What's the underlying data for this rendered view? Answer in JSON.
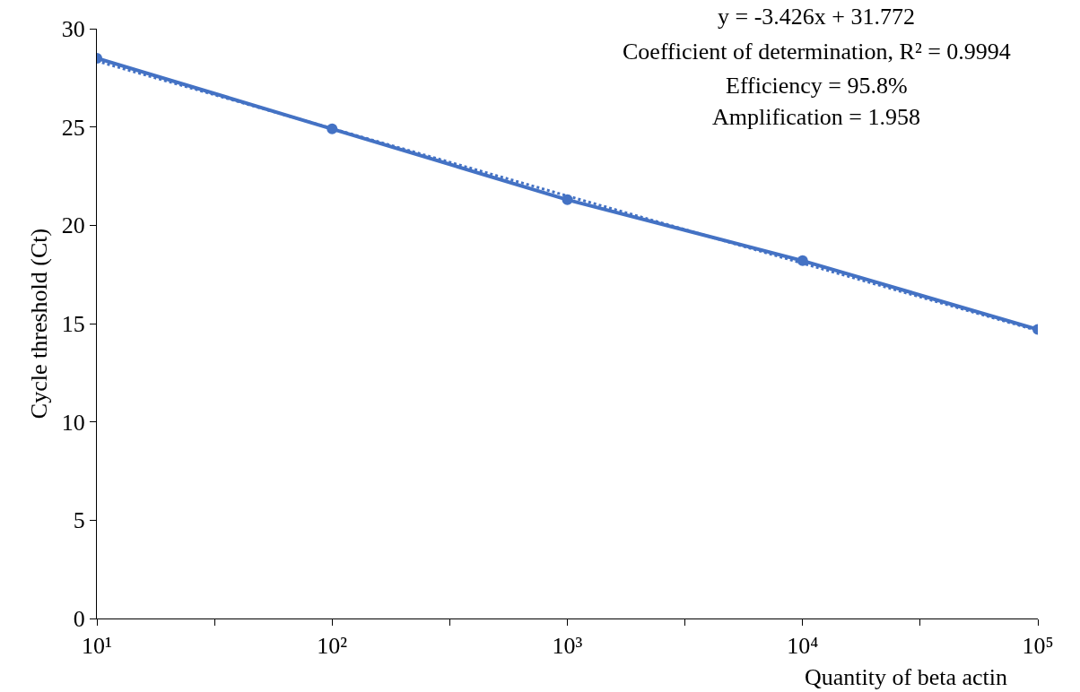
{
  "chart_data": {
    "type": "line",
    "xlabel": "Quantity of beta actin",
    "ylabel": "Cycle threshold (Ct)",
    "log": "x",
    "x": [
      10,
      100,
      1000,
      10000,
      100000
    ],
    "series": [
      {
        "color": "#4472c4",
        "values": [
          28.5,
          24.9,
          21.3,
          18.2,
          14.7
        ],
        "marker": "circle",
        "line_style": "solid"
      },
      {
        "type": "line",
        "color": "#4472c4",
        "x": [
          10,
          100000
        ],
        "values": [
          28.35,
          14.64
        ],
        "marker": "none",
        "line_style": "dotted"
      }
    ],
    "xlim": [
      10,
      100000
    ],
    "ylim": [
      0,
      30
    ],
    "xticks": [
      {
        "value": 10,
        "label": "10¹"
      },
      {
        "value": 31.6,
        "label": null
      },
      {
        "value": 100,
        "label": "10²"
      },
      {
        "value": 316,
        "label": null
      },
      {
        "value": 1000,
        "label": "10³"
      },
      {
        "value": 3162,
        "label": null
      },
      {
        "value": 10000,
        "label": "10⁴"
      },
      {
        "value": 31623,
        "label": null
      },
      {
        "value": 100000,
        "label": "10⁵"
      }
    ],
    "yticks": [
      0,
      5,
      10,
      15,
      20,
      25,
      30
    ],
    "grid": false,
    "annotations": [
      "y = -3.426x + 31.772",
      "Coefficient of determination, R² = 0.9994",
      "Efficiency = 95.8%",
      "Amplification = 1.958"
    ]
  }
}
